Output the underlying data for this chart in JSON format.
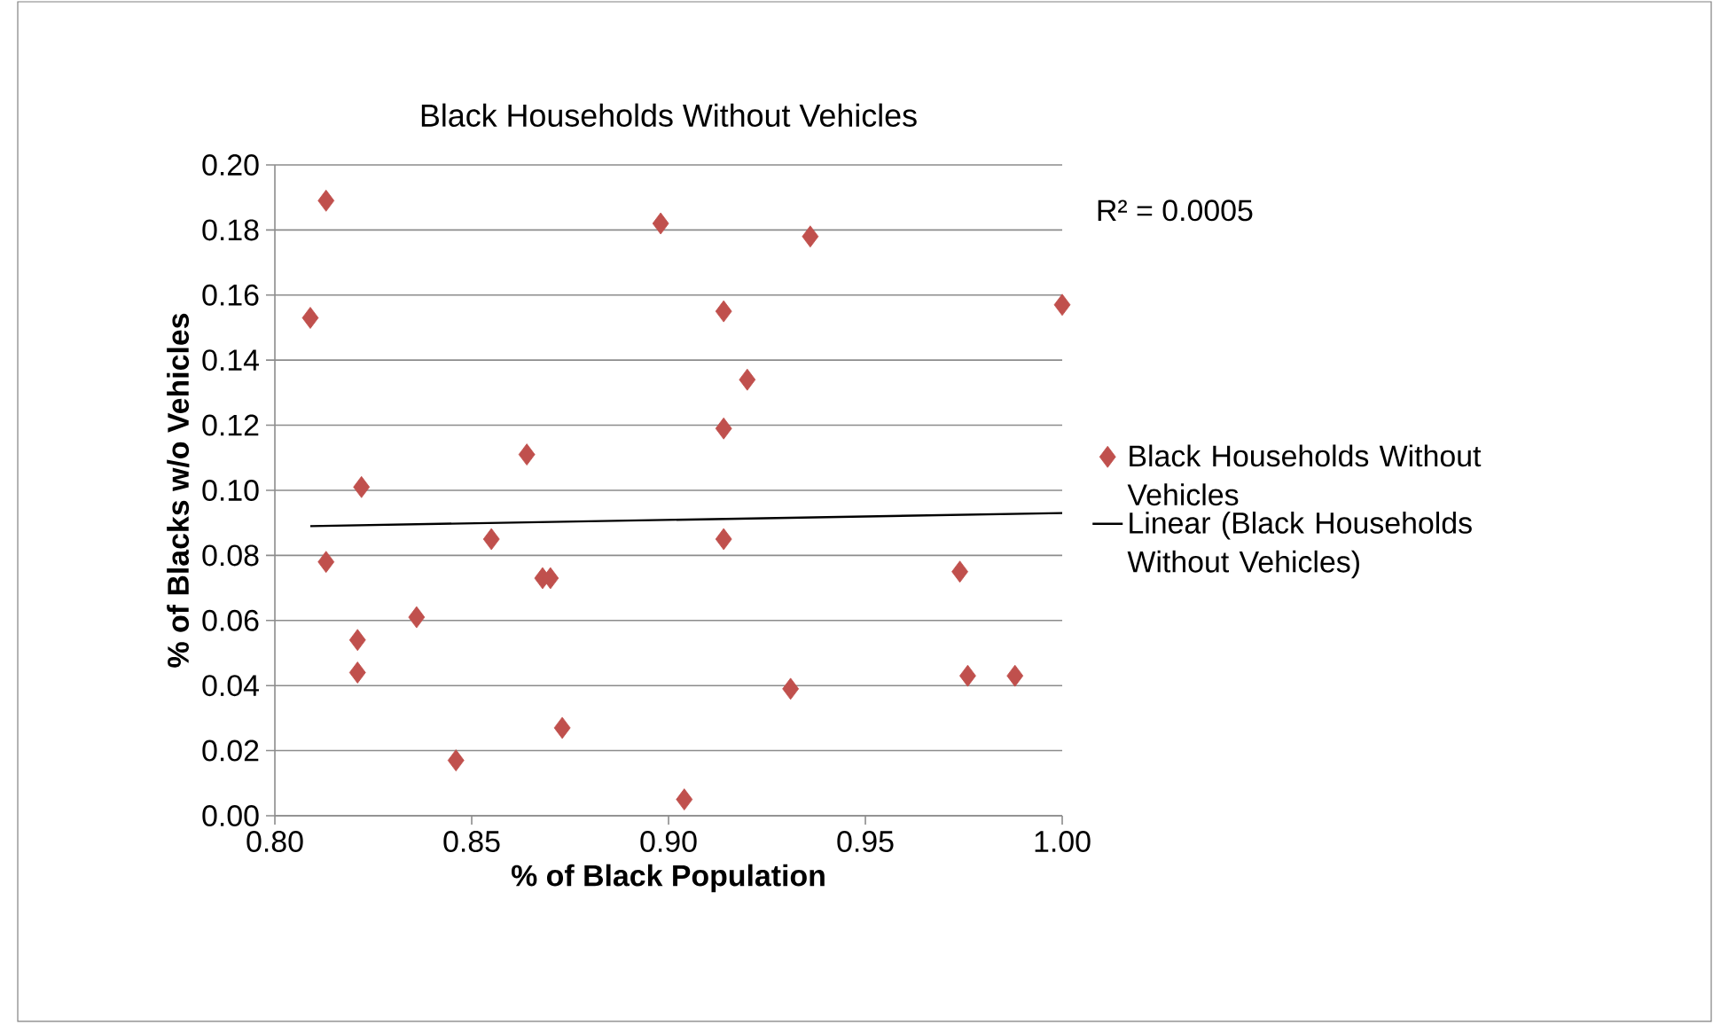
{
  "chart_data": {
    "type": "scatter",
    "title": "Black Households Without Vehicles",
    "xlabel": "% of Black Population",
    "ylabel": "% of Blacks w/o Vehicles",
    "annotations": [
      "R² = 0.0005"
    ],
    "series": [
      {
        "name": "Black Households Without Vehicles",
        "color": "#c0504d",
        "marker": "diamond",
        "x": [
          0.809,
          0.813,
          0.813,
          0.822,
          0.821,
          0.821,
          0.836,
          0.846,
          0.855,
          0.864,
          0.868,
          0.87,
          0.873,
          0.898,
          0.904,
          0.914,
          0.914,
          0.914,
          0.92,
          0.931,
          0.936,
          0.974,
          0.976,
          0.988,
          1.0
        ],
        "values": [
          0.153,
          0.189,
          0.078,
          0.101,
          0.054,
          0.044,
          0.061,
          0.017,
          0.085,
          0.111,
          0.073,
          0.073,
          0.027,
          0.182,
          0.005,
          0.155,
          0.119,
          0.085,
          0.134,
          0.039,
          0.178,
          0.075,
          0.043,
          0.043,
          0.157
        ]
      },
      {
        "name": "Linear (Black Households Without Vehicles)",
        "type": "line",
        "color": "#000000",
        "marker": "none",
        "line_style": "solid",
        "x": [
          0.809,
          1.0
        ],
        "values": [
          0.089,
          0.093
        ]
      }
    ],
    "xlim": [
      0.8,
      1.0
    ],
    "ylim": [
      0,
      0.2
    ],
    "xticks": [
      {
        "value": 0.8,
        "label": "0.80"
      },
      {
        "value": 0.85,
        "label": "0.85"
      },
      {
        "value": 0.9,
        "label": "0.90"
      },
      {
        "value": 0.95,
        "label": "0.95"
      },
      {
        "value": 1.0,
        "label": "1.00"
      }
    ],
    "yticks": [
      {
        "value": 0,
        "label": "0.00"
      },
      {
        "value": 0.02,
        "label": "0.02"
      },
      {
        "value": 0.04,
        "label": "0.04"
      },
      {
        "value": 0.06,
        "label": "0.06"
      },
      {
        "value": 0.08,
        "label": "0.08"
      },
      {
        "value": 0.1,
        "label": "0.10"
      },
      {
        "value": 0.12,
        "label": "0.12"
      },
      {
        "value": 0.14,
        "label": "0.14"
      },
      {
        "value": 0.16,
        "label": "0.16"
      },
      {
        "value": 0.18,
        "label": "0.18"
      },
      {
        "value": 0.2,
        "label": "0.20"
      }
    ],
    "grid": "y",
    "legend": "right"
  }
}
